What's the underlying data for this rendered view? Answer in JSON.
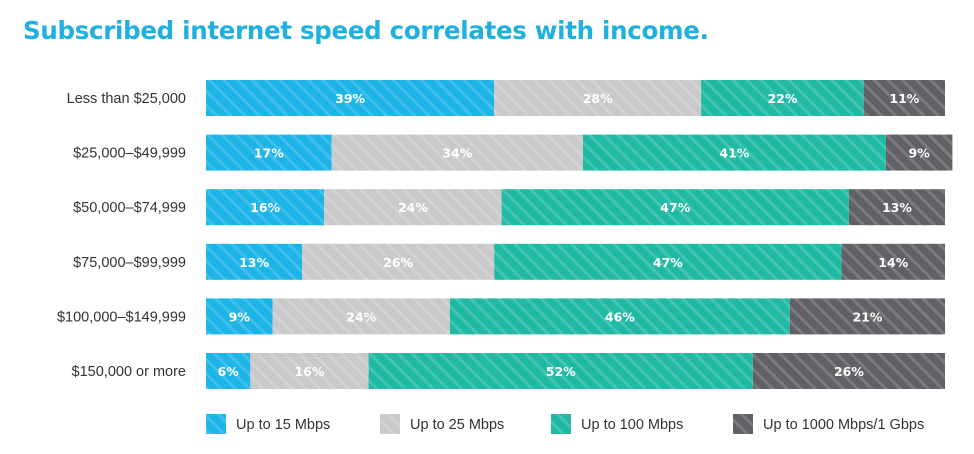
{
  "title": "Subscribed internet speed correlates with income.",
  "chart_data": {
    "type": "bar",
    "orientation": "horizontal",
    "stacked": true,
    "normalized": true,
    "title": "Subscribed internet speed correlates with income.",
    "categories": [
      "Less than $25,000",
      "$25,000–$49,999",
      "$50,000–$74,999",
      "$75,000–$99,999",
      "$100,000–$149,999",
      "$150,000 or more"
    ],
    "series": [
      {
        "name": "Up to 15 Mbps",
        "color": "#1db4e8",
        "values": [
          39,
          17,
          16,
          13,
          9,
          6
        ],
        "labels": [
          "39%",
          "17%",
          "16%",
          "13%",
          "9%",
          "6%"
        ]
      },
      {
        "name": "Up to 25 Mbps",
        "color": "#c9c9c9",
        "values": [
          28,
          34,
          24,
          26,
          24,
          16
        ],
        "labels": [
          "28%",
          "34%",
          "24%",
          "26%",
          "24%",
          "16%"
        ]
      },
      {
        "name": "Up to 100 Mbps",
        "color": "#20b9a4",
        "values": [
          22,
          41,
          47,
          47,
          46,
          52
        ],
        "labels": [
          "22%",
          "41%",
          "47%",
          "47%",
          "46%",
          "52%"
        ]
      },
      {
        "name": "Up to 1000 Mbps/1 Gbps",
        "color": "#606065",
        "values": [
          11,
          9,
          13,
          14,
          21,
          26
        ],
        "labels": [
          "11%",
          "9%",
          "13%",
          "14%",
          "21%",
          "26%"
        ]
      }
    ],
    "xlabel": "",
    "ylabel": "",
    "grid": false,
    "legend_position": "bottom",
    "pattern": "diagonal stripes"
  }
}
